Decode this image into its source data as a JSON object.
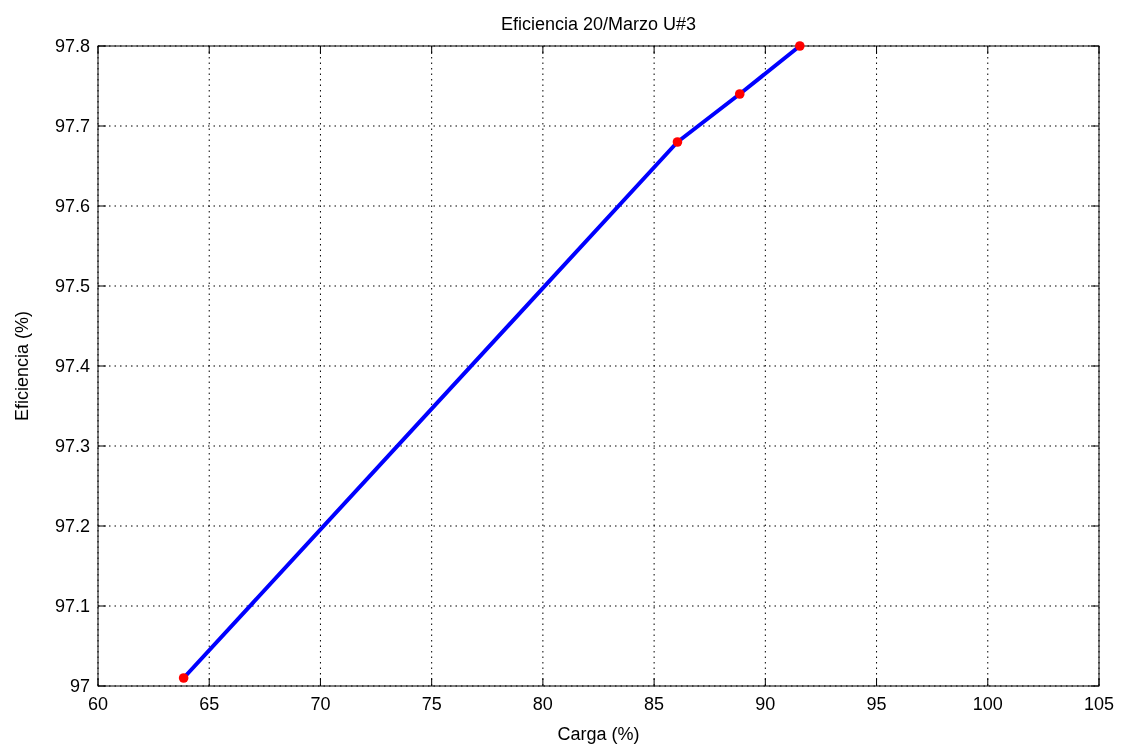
{
  "chart_data": {
    "type": "line",
    "title": "Eficiencia 20/Marzo U#3",
    "xlabel": "Carga (%)",
    "ylabel": "Eficiencia (%)",
    "x": [
      63.85,
      86.05,
      88.85,
      91.55
    ],
    "series": [
      {
        "color": "#0000ff",
        "values": [
          97.01,
          97.68,
          97.74,
          97.8
        ],
        "marker": "none",
        "line_style": "solid"
      },
      {
        "type": "scatter",
        "color": "#ff0000",
        "values": [
          97.01,
          97.68,
          97.74,
          97.8
        ],
        "marker": "circle"
      }
    ],
    "xlim": [
      60,
      105
    ],
    "xticks": [
      60,
      65,
      70,
      75,
      80,
      85,
      90,
      95,
      100,
      105
    ],
    "ylim": [
      97,
      97.8
    ],
    "yticks": [
      97,
      {
        "value": 97.1,
        "label": "97.1"
      },
      {
        "value": 97.2,
        "label": "97.2"
      },
      {
        "value": 97.3,
        "label": "97.3"
      },
      {
        "value": 97.4,
        "label": "97.4"
      },
      {
        "value": 97.5,
        "label": "97.5"
      },
      {
        "value": 97.6,
        "label": "97.6"
      },
      {
        "value": 97.7,
        "label": "97.7"
      },
      {
        "value": 97.8,
        "label": "97.8"
      }
    ],
    "grid": true
  }
}
